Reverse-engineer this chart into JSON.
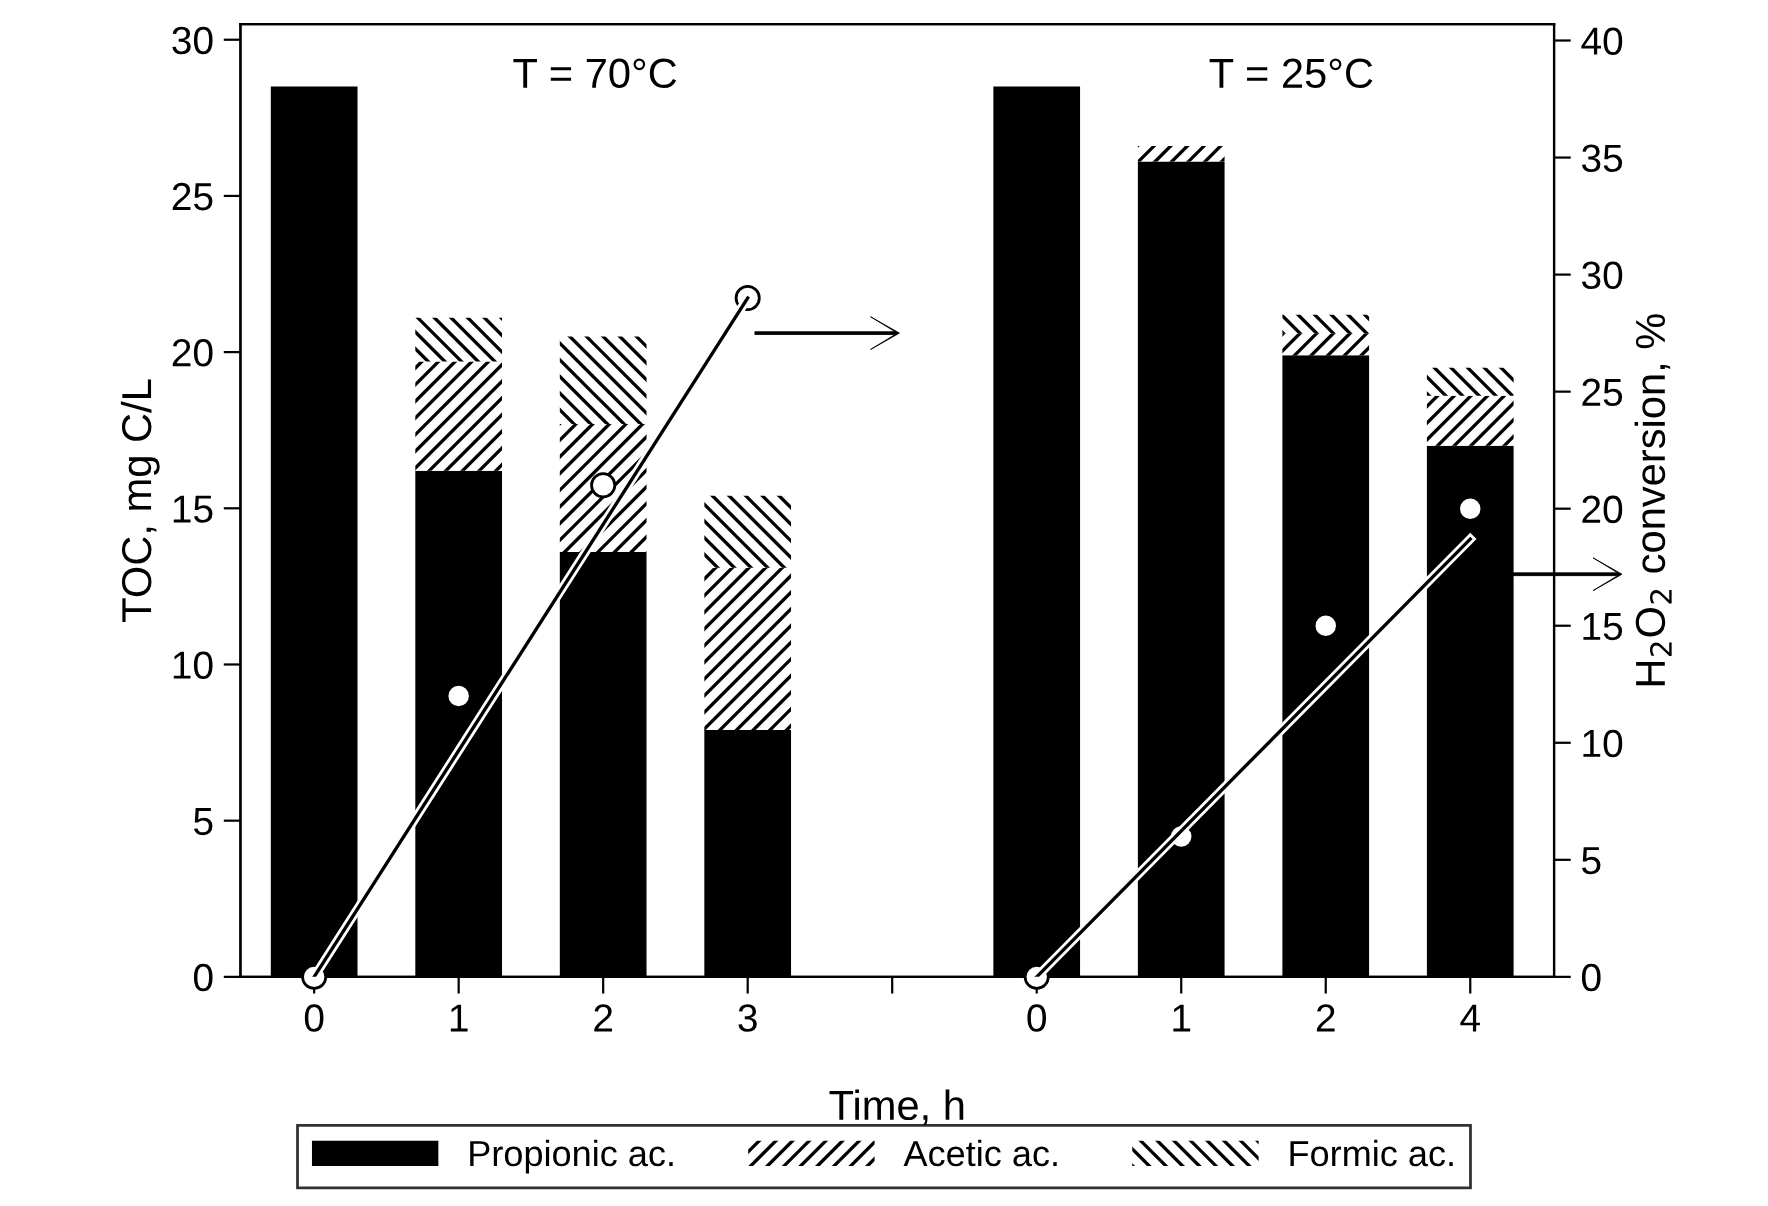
{
  "chart_data": {
    "type": "bar",
    "stacked": true,
    "xlabel": "Time, h",
    "ylabel": "TOC, mg C/L",
    "y2label": "H$_{2}$O$_{2}$ conversion, %",
    "categories": [
      "0",
      "1",
      "2",
      "3",
      null,
      "0",
      "1",
      "2",
      "4"
    ],
    "series": [
      {
        "name": "Propionic ac.",
        "color": "#000000",
        "values": [
          28.5,
          16.2,
          13.6,
          7.9,
          null,
          28.5,
          26.1,
          19.9,
          17.0
        ]
      },
      {
        "name": "Acetic ac.",
        "color": "#000000",
        "values": [
          null,
          3.5,
          4.1,
          5.2,
          null,
          null,
          0.5,
          0.7,
          1.6
        ]
      },
      {
        "name": "Formic ac.",
        "color": "#000000",
        "values": [
          null,
          1.4,
          2.8,
          2.3,
          null,
          null,
          null,
          0.6,
          0.9
        ]
      },
      {
        "type": "scatter",
        "axis": "y2",
        "color": "#ffffff",
        "marker": "circle",
        "values": [
          0,
          12,
          21,
          29,
          null,
          0,
          6,
          15,
          20
        ]
      },
      {
        "type": "line",
        "axis": "y2",
        "color": "#000000",
        "line_style": "solid",
        "values": [
          0,
          null,
          null,
          29,
          null,
          null,
          null,
          null,
          null
        ]
      },
      {
        "type": "line",
        "axis": "y2",
        "color": "#000000",
        "line_style": "solid",
        "values": [
          null,
          null,
          null,
          null,
          null,
          0,
          null,
          null,
          18.7
        ]
      }
    ],
    "annotations": [
      "T = 70°C",
      "T = 25°C"
    ],
    "ylim": [
      0,
      30.5
    ],
    "yticks": [
      0,
      5,
      10,
      15,
      20,
      25,
      30
    ],
    "y2lim": [
      0,
      40.7
    ],
    "y2ticks": [
      0,
      5,
      10,
      15,
      20,
      25,
      30,
      35,
      40
    ],
    "grid": false,
    "legend": "bottom"
  }
}
